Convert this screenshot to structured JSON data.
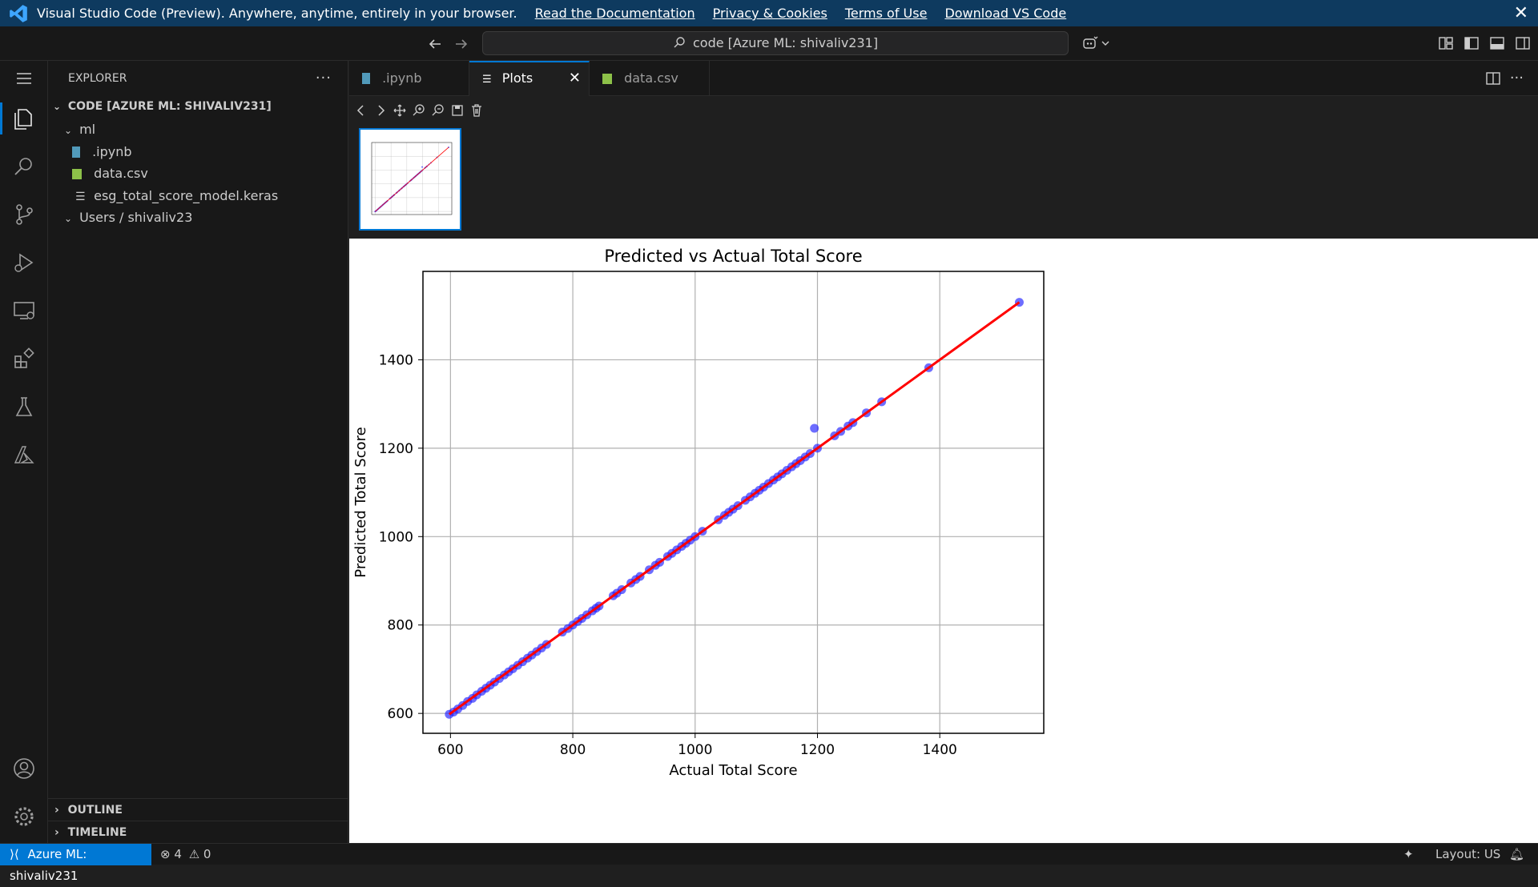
{
  "banner": {
    "text": "Visual Studio Code (Preview). Anywhere, anytime, entirely in your browser.",
    "links": [
      "Read the Documentation",
      "Privacy & Cookies",
      "Terms of Use",
      "Download VS Code"
    ],
    "close": "✕"
  },
  "titlebar": {
    "command_center": "code [Azure ML: shivaliv231]"
  },
  "sidebar": {
    "title": "EXPLORER",
    "more": "···",
    "root": "CODE [AZURE ML: SHIVALIV231]",
    "folder_ml": "ml",
    "files": [
      ".ipynb",
      "data.csv",
      "esg_total_score_model.keras"
    ],
    "folder_users": "Users / shivaliv23",
    "outline": "OUTLINE",
    "timeline": "TIMELINE"
  },
  "tabs": [
    {
      "label": ".ipynb"
    },
    {
      "label": "Plots"
    },
    {
      "label": "data.csv"
    }
  ],
  "status": {
    "remote": "Azure ML: shivaliv231",
    "errors": "4",
    "warnings": "0",
    "layout": "Layout: US"
  },
  "colors": {
    "accent": "#0078d4",
    "banner": "#0e3a5f",
    "point": "#1f1fff",
    "line": "#ff0000"
  },
  "chart_data": {
    "type": "scatter",
    "title": "Predicted vs Actual Total Score",
    "xlabel": "Actual Total Score",
    "ylabel": "Predicted Total Score",
    "xlim": [
      555,
      1570
    ],
    "ylim": [
      555,
      1600
    ],
    "xticks": [
      600,
      800,
      1000,
      1200,
      1400
    ],
    "yticks": [
      600,
      800,
      1000,
      1200,
      1400
    ],
    "grid": true,
    "reference_line": {
      "from": [
        598,
        598
      ],
      "to": [
        1530,
        1530
      ]
    },
    "points": [
      [
        598,
        598
      ],
      [
        605,
        603
      ],
      [
        612,
        610
      ],
      [
        620,
        618
      ],
      [
        628,
        627
      ],
      [
        636,
        634
      ],
      [
        643,
        642
      ],
      [
        651,
        650
      ],
      [
        658,
        657
      ],
      [
        665,
        664
      ],
      [
        672,
        671
      ],
      [
        680,
        679
      ],
      [
        688,
        687
      ],
      [
        695,
        694
      ],
      [
        702,
        701
      ],
      [
        710,
        709
      ],
      [
        718,
        717
      ],
      [
        726,
        725
      ],
      [
        733,
        732
      ],
      [
        741,
        740
      ],
      [
        749,
        748
      ],
      [
        757,
        756
      ],
      [
        783,
        784
      ],
      [
        792,
        792
      ],
      [
        800,
        800
      ],
      [
        808,
        808
      ],
      [
        815,
        815
      ],
      [
        823,
        823
      ],
      [
        832,
        832
      ],
      [
        838,
        838
      ],
      [
        843,
        843
      ],
      [
        866,
        866
      ],
      [
        872,
        872
      ],
      [
        880,
        880
      ],
      [
        895,
        895
      ],
      [
        903,
        903
      ],
      [
        910,
        910
      ],
      [
        925,
        925
      ],
      [
        935,
        935
      ],
      [
        942,
        942
      ],
      [
        955,
        955
      ],
      [
        962,
        962
      ],
      [
        970,
        970
      ],
      [
        978,
        978
      ],
      [
        985,
        985
      ],
      [
        992,
        992
      ],
      [
        1000,
        1000
      ],
      [
        1012,
        1012
      ],
      [
        1038,
        1038
      ],
      [
        1048,
        1048
      ],
      [
        1055,
        1055
      ],
      [
        1062,
        1062
      ],
      [
        1070,
        1070
      ],
      [
        1082,
        1082
      ],
      [
        1090,
        1090
      ],
      [
        1098,
        1098
      ],
      [
        1105,
        1105
      ],
      [
        1112,
        1112
      ],
      [
        1120,
        1120
      ],
      [
        1128,
        1128
      ],
      [
        1135,
        1135
      ],
      [
        1142,
        1142
      ],
      [
        1150,
        1150
      ],
      [
        1158,
        1158
      ],
      [
        1165,
        1165
      ],
      [
        1172,
        1172
      ],
      [
        1180,
        1180
      ],
      [
        1188,
        1188
      ],
      [
        1195,
        1245
      ],
      [
        1200,
        1200
      ],
      [
        1228,
        1228
      ],
      [
        1238,
        1238
      ],
      [
        1250,
        1250
      ],
      [
        1258,
        1258
      ],
      [
        1280,
        1280
      ],
      [
        1305,
        1305
      ],
      [
        1382,
        1382
      ],
      [
        1530,
        1530
      ]
    ]
  }
}
